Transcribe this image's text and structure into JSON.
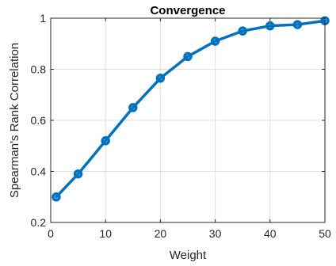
{
  "chart_data": {
    "type": "line",
    "title": "Convergence",
    "xlabel": "Weight",
    "ylabel": "Spearman's Rank Correlation",
    "xlim": [
      0,
      50
    ],
    "ylim": [
      0.2,
      1
    ],
    "xticks": [
      0,
      10,
      20,
      30,
      40,
      50
    ],
    "xtick_labels": [
      "0",
      "10",
      "20",
      "30",
      "40",
      "50"
    ],
    "yticks": [
      0.2,
      0.4,
      0.6,
      0.8,
      1
    ],
    "ytick_labels": [
      "0.2",
      "0.4",
      "0.6",
      "0.8",
      "1"
    ],
    "grid": true,
    "color": "#0072BD",
    "series": [
      {
        "x": [
          1,
          5,
          10,
          15,
          20,
          25,
          30,
          35,
          40,
          45,
          50
        ],
        "y": [
          0.3,
          0.39,
          0.52,
          0.65,
          0.765,
          0.85,
          0.91,
          0.95,
          0.97,
          0.975,
          0.99
        ]
      }
    ]
  }
}
